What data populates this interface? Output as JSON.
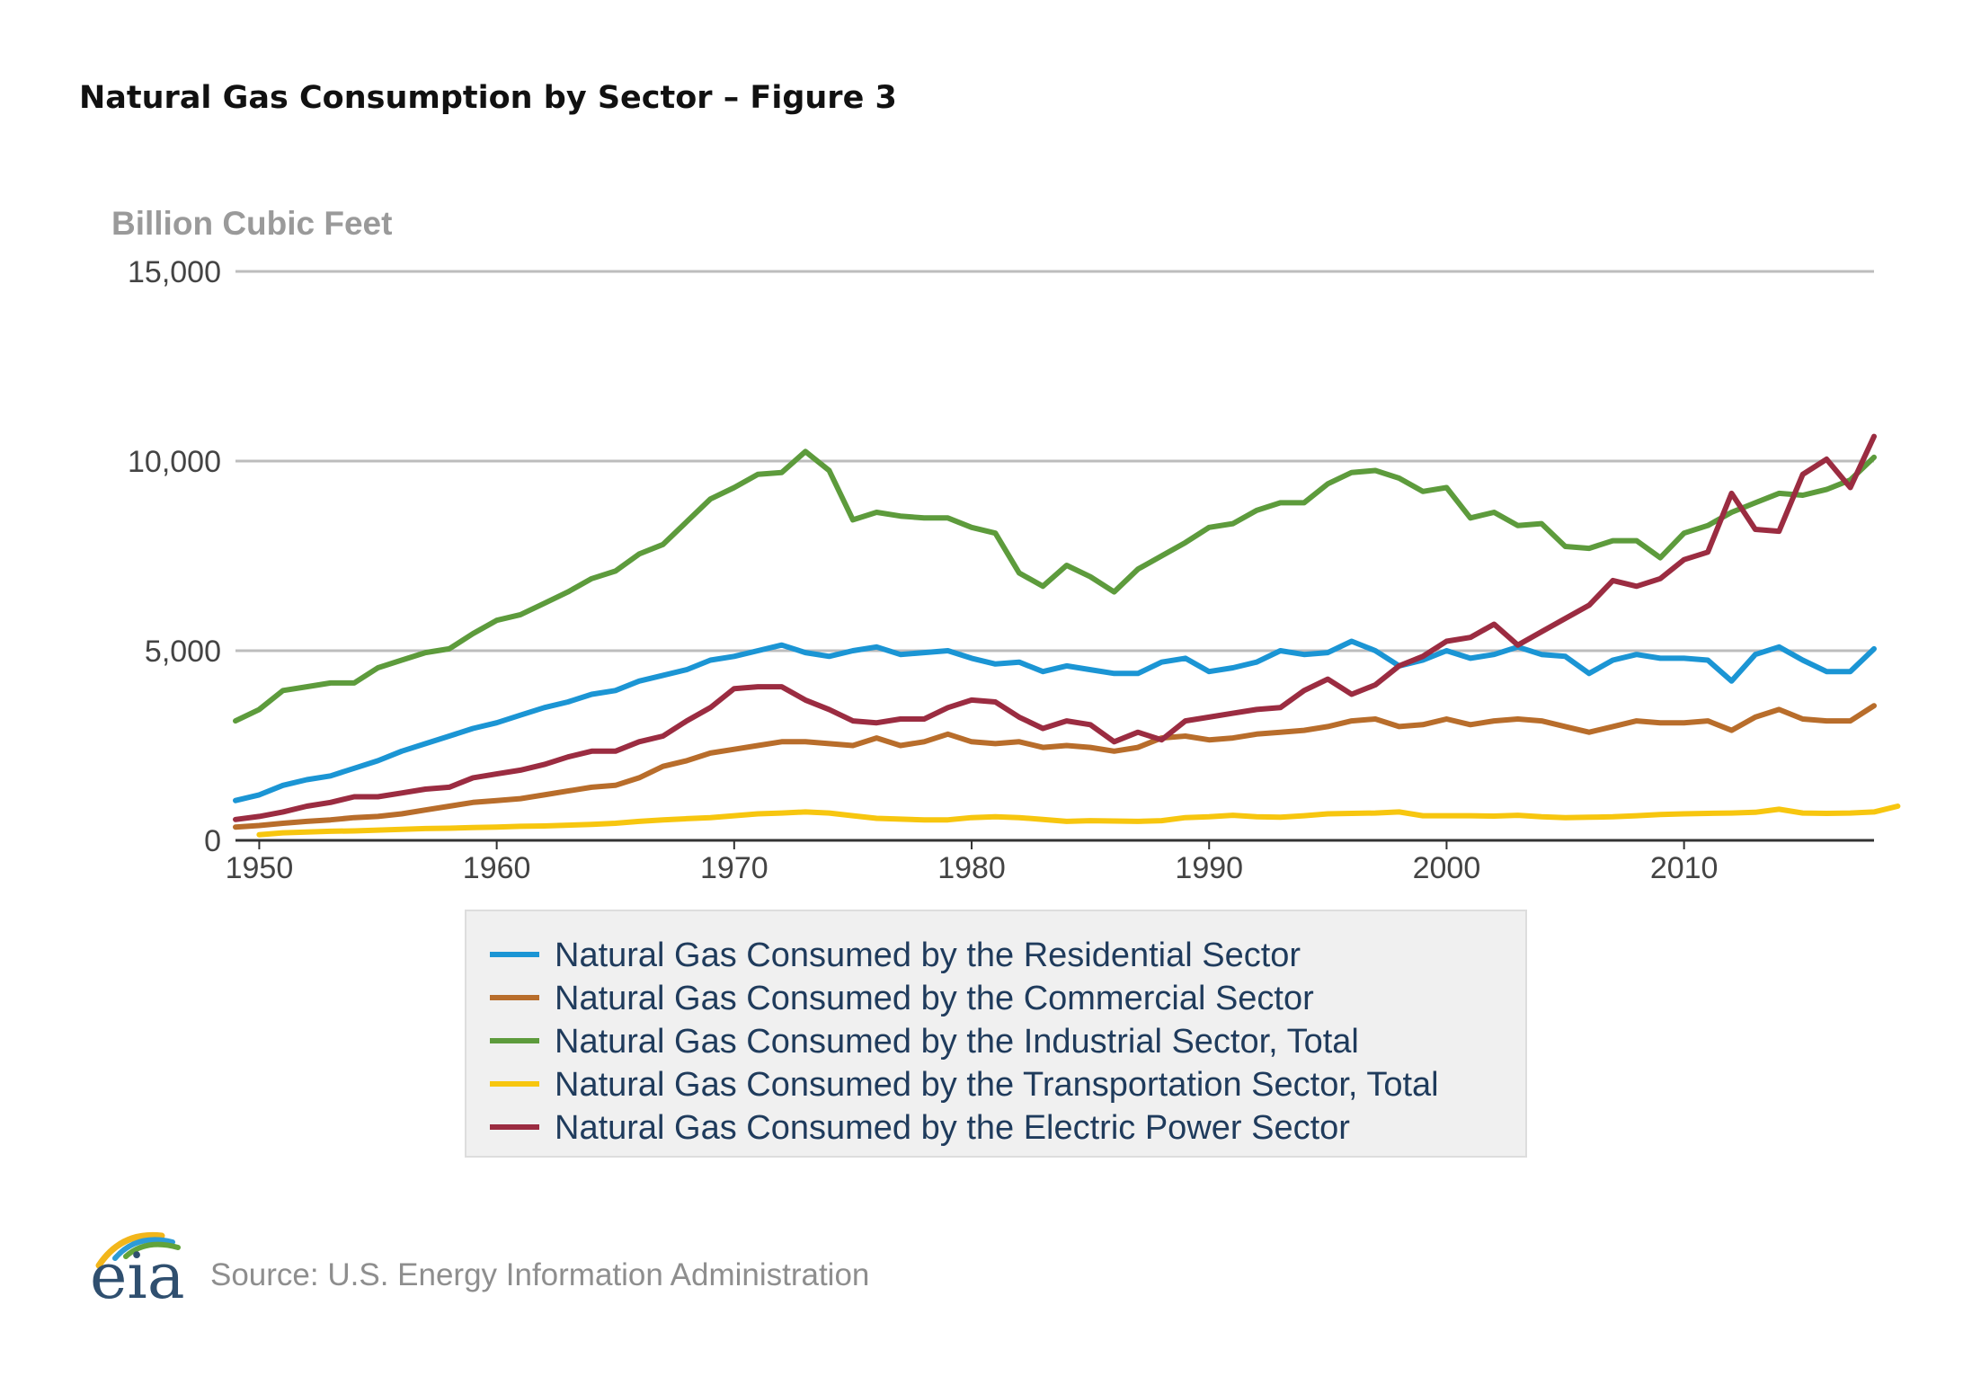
{
  "title": "Natural Gas Consumption by Sector – Figure 3",
  "source": "Source: U.S. Energy Information Administration",
  "logo_text": "eia",
  "colors": {
    "residential": "#1b95d4",
    "commercial": "#b86d2b",
    "industrial": "#5d9b3c",
    "transportation": "#f7c60f",
    "electric": "#9b2c41",
    "gridline": "#bdbdbd",
    "axis": "#333333",
    "legend_bg": "#f0f0f0",
    "legend_border": "#dddddd"
  },
  "chart_data": {
    "type": "line",
    "title": "Natural Gas Consumption by Sector – Figure 3",
    "ylabel": "Billion Cubic Feet",
    "xlabel": "",
    "xlim": [
      1949,
      2018
    ],
    "ylim": [
      0,
      15000
    ],
    "x_ticks": [
      1950,
      1960,
      1970,
      1980,
      1990,
      2000,
      2010
    ],
    "x_tick_labels": [
      "1950",
      "1960",
      "1970",
      "1980",
      "1990",
      "2000",
      "2010"
    ],
    "y_ticks": [
      0,
      5000,
      10000,
      15000
    ],
    "y_tick_labels": [
      "0",
      "5,000",
      "10,000",
      "15,000"
    ],
    "grid": true,
    "legend_position": "bottom",
    "series": [
      {
        "name": "Natural Gas Consumed by the Residential Sector",
        "color_key": "residential",
        "x_start": 1949,
        "values": [
          1050,
          1200,
          1450,
          1600,
          1700,
          1900,
          2100,
          2350,
          2550,
          2750,
          2950,
          3100,
          3300,
          3500,
          3650,
          3850,
          3950,
          4200,
          4350,
          4500,
          4750,
          4850,
          5000,
          5150,
          4950,
          4850,
          5000,
          5100,
          4900,
          4950,
          5000,
          4800,
          4650,
          4700,
          4450,
          4600,
          4500,
          4400,
          4400,
          4700,
          4800,
          4450,
          4550,
          4700,
          5000,
          4900,
          4950,
          5250,
          5000,
          4600,
          4750,
          5000,
          4800,
          4900,
          5100,
          4900,
          4850,
          4400,
          4750,
          4900,
          4800,
          4800,
          4750,
          4200,
          4900,
          5100,
          4750,
          4450,
          4450,
          5050
        ]
      },
      {
        "name": "Natural Gas Consumed by the Commercial Sector",
        "color_key": "commercial",
        "x_start": 1949,
        "values": [
          350,
          390,
          450,
          500,
          540,
          600,
          630,
          700,
          800,
          900,
          1000,
          1050,
          1100,
          1200,
          1300,
          1400,
          1450,
          1650,
          1950,
          2100,
          2300,
          2400,
          2500,
          2600,
          2600,
          2550,
          2500,
          2700,
          2500,
          2600,
          2800,
          2600,
          2550,
          2600,
          2450,
          2500,
          2450,
          2350,
          2450,
          2700,
          2750,
          2650,
          2700,
          2800,
          2850,
          2900,
          3000,
          3150,
          3200,
          3000,
          3050,
          3200,
          3050,
          3150,
          3200,
          3150,
          3000,
          2850,
          3000,
          3150,
          3100,
          3100,
          3150,
          2900,
          3250,
          3450,
          3200,
          3150,
          3150,
          3550
        ]
      },
      {
        "name": "Natural Gas Consumed by the Industrial Sector, Total",
        "color_key": "industrial",
        "x_start": 1949,
        "values": [
          3150,
          3450,
          3950,
          4050,
          4150,
          4150,
          4550,
          4750,
          4950,
          5050,
          5450,
          5800,
          5950,
          6250,
          6550,
          6900,
          7100,
          7550,
          7800,
          8400,
          9000,
          9300,
          9650,
          9700,
          10250,
          9750,
          8450,
          8650,
          8550,
          8500,
          8500,
          8250,
          8100,
          7050,
          6700,
          7250,
          6950,
          6550,
          7150,
          7500,
          7850,
          8250,
          8350,
          8700,
          8900,
          8900,
          9400,
          9700,
          9750,
          9550,
          9200,
          9300,
          8500,
          8650,
          8300,
          8350,
          7750,
          7700,
          7900,
          7900,
          7450,
          8100,
          8300,
          8650,
          8900,
          9150,
          9100,
          9250,
          9500,
          10100
        ]
      },
      {
        "name": "Natural Gas Consumed by the Transportation Sector, Total",
        "color_key": "transportation",
        "x_start": 1950,
        "values": [
          150,
          200,
          220,
          240,
          250,
          270,
          290,
          310,
          320,
          340,
          350,
          370,
          380,
          400,
          420,
          450,
          500,
          540,
          570,
          600,
          650,
          700,
          720,
          750,
          720,
          650,
          580,
          560,
          540,
          540,
          600,
          620,
          600,
          550,
          500,
          520,
          510,
          500,
          520,
          600,
          620,
          660,
          620,
          610,
          650,
          700,
          710,
          720,
          750,
          650,
          650,
          650,
          640,
          660,
          620,
          600,
          610,
          620,
          650,
          680,
          700,
          710,
          720,
          740,
          820,
          720,
          710,
          720,
          750,
          900
        ]
      },
      {
        "name": "Natural Gas Consumed by the Electric Power Sector",
        "color_key": "electric",
        "x_start": 1949,
        "values": [
          550,
          630,
          750,
          900,
          1000,
          1150,
          1150,
          1250,
          1350,
          1400,
          1650,
          1750,
          1850,
          2000,
          2200,
          2350,
          2350,
          2600,
          2750,
          3150,
          3500,
          4000,
          4050,
          4050,
          3700,
          3450,
          3150,
          3100,
          3200,
          3200,
          3500,
          3700,
          3650,
          3250,
          2950,
          3150,
          3050,
          2600,
          2850,
          2650,
          3150,
          3250,
          3350,
          3450,
          3500,
          3950,
          4250,
          3850,
          4100,
          4600,
          4850,
          5250,
          5350,
          5700,
          5150,
          5500,
          5850,
          6200,
          6850,
          6700,
          6900,
          7400,
          7600,
          9150,
          8200,
          8150,
          9650,
          10050,
          9300,
          10650
        ]
      }
    ]
  }
}
